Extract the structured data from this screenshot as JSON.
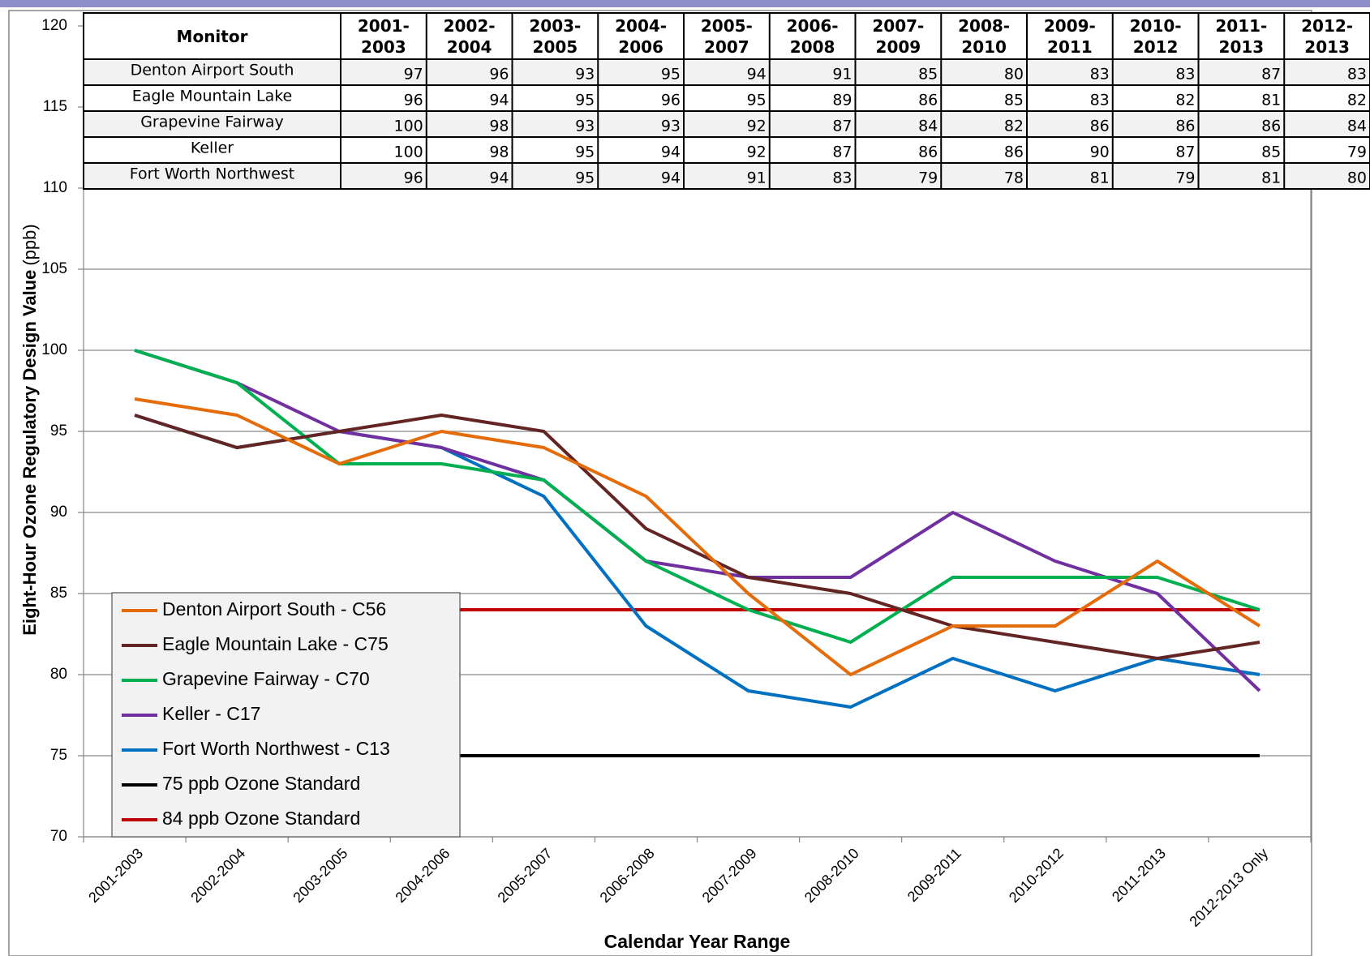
{
  "chart_data": {
    "type": "line",
    "y_label": "Eight-Hour Ozone Regulatory Design Value",
    "y_label_unit": "(ppb)",
    "x_label": "Calendar Year Range",
    "categories": [
      "2001-2003",
      "2002-2004",
      "2003-2005",
      "2004-2006",
      "2005-2007",
      "2006-2008",
      "2007-2009",
      "2008-2010",
      "2009-2011",
      "2010-2012",
      "2011-2013",
      "2012-2013 Only"
    ],
    "ylim": [
      70,
      120
    ],
    "yticks": [
      70,
      75,
      80,
      85,
      90,
      95,
      100,
      105,
      110,
      115,
      120
    ],
    "grid": true,
    "series": [
      {
        "name": "Denton Airport South - C56",
        "color": "#e46c0a",
        "values": [
          97,
          96,
          93,
          95,
          94,
          91,
          85,
          80,
          83,
          83,
          87,
          83
        ]
      },
      {
        "name": "Eagle Mountain Lake - C75",
        "color": "#632523",
        "values": [
          96,
          94,
          95,
          96,
          95,
          89,
          86,
          85,
          83,
          82,
          81,
          82
        ]
      },
      {
        "name": "Grapevine Fairway - C70",
        "color": "#00b050",
        "values": [
          100,
          98,
          93,
          93,
          92,
          87,
          84,
          82,
          86,
          86,
          86,
          84
        ]
      },
      {
        "name": "Keller - C17",
        "color": "#7030a0",
        "values": [
          100,
          98,
          95,
          94,
          92,
          87,
          86,
          86,
          90,
          87,
          85,
          79
        ]
      },
      {
        "name": "Fort Worth Northwest - C13",
        "color": "#0070c0",
        "values": [
          96,
          94,
          95,
          94,
          91,
          83,
          79,
          78,
          81,
          79,
          81,
          80
        ]
      },
      {
        "name": "75 ppb Ozone Standard",
        "color": "#000000",
        "values": [
          75,
          75,
          75,
          75,
          75,
          75,
          75,
          75,
          75,
          75,
          75,
          75
        ]
      },
      {
        "name": "84 ppb Ozone Standard",
        "color": "#c00000",
        "values": [
          84,
          84,
          84,
          84,
          84,
          84,
          84,
          84,
          84,
          84,
          84,
          84
        ]
      }
    ],
    "table": {
      "monitor_header": "Monitor",
      "columns": [
        [
          "2001-",
          "2003"
        ],
        [
          "2002-",
          "2004"
        ],
        [
          "2003-",
          "2005"
        ],
        [
          "2004-",
          "2006"
        ],
        [
          "2005-",
          "2007"
        ],
        [
          "2006-",
          "2008"
        ],
        [
          "2007-",
          "2009"
        ],
        [
          "2008-",
          "2010"
        ],
        [
          "2009-",
          "2011"
        ],
        [
          "2010-",
          "2012"
        ],
        [
          "2011-",
          "2013"
        ],
        [
          "2012-",
          "2013"
        ]
      ],
      "rows": [
        {
          "name": "Denton Airport South",
          "values": [
            97,
            96,
            93,
            95,
            94,
            91,
            85,
            80,
            83,
            83,
            87,
            83
          ]
        },
        {
          "name": "Eagle Mountain Lake",
          "values": [
            96,
            94,
            95,
            96,
            95,
            89,
            86,
            85,
            83,
            82,
            81,
            82
          ]
        },
        {
          "name": "Grapevine Fairway",
          "values": [
            100,
            98,
            93,
            93,
            92,
            87,
            84,
            82,
            86,
            86,
            86,
            84
          ]
        },
        {
          "name": "Keller",
          "values": [
            100,
            98,
            95,
            94,
            92,
            87,
            86,
            86,
            90,
            87,
            85,
            79
          ]
        },
        {
          "name": "Fort Worth Northwest",
          "values": [
            96,
            94,
            95,
            94,
            91,
            83,
            79,
            78,
            81,
            79,
            81,
            80
          ]
        }
      ]
    }
  }
}
